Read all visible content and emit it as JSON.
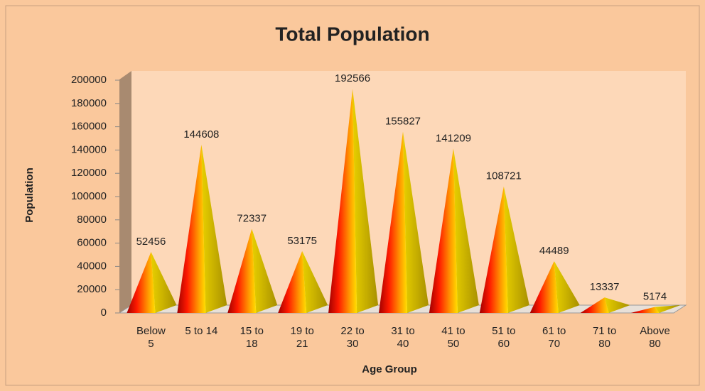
{
  "chart_data": {
    "type": "pyramid",
    "title": "Total Population",
    "x_label": "Age Group",
    "y_label": "Population",
    "categories": [
      "Below 5",
      "5 to 14",
      "15 to 18",
      "19 to 21",
      "22 to 30",
      "31 to 40",
      "41 to 50",
      "51 to 60",
      "61 to 70",
      "71 to 80",
      "Above 80"
    ],
    "values": [
      52456,
      144608,
      72337,
      53175,
      192566,
      155827,
      141209,
      108721,
      44489,
      13337,
      5174
    ],
    "ylim": [
      0,
      200000
    ],
    "yticks": [
      0,
      20000,
      40000,
      60000,
      80000,
      100000,
      120000,
      140000,
      160000,
      180000,
      200000
    ]
  }
}
